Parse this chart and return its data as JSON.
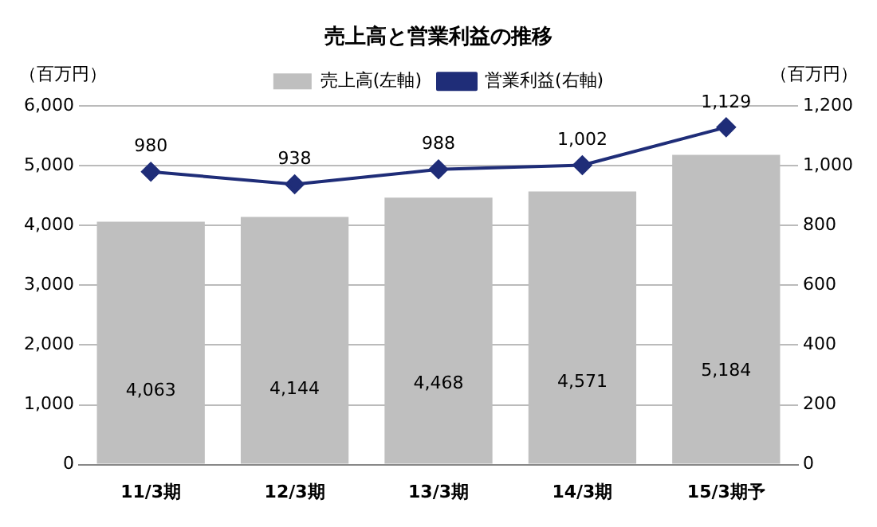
{
  "chart_data": {
    "type": "bar",
    "title": "売上高と営業利益の推移",
    "ylabel": "（百万円）",
    "y2label": "（百万円）",
    "categories": [
      "11/3期",
      "12/3期",
      "13/3期",
      "14/3期",
      "15/3期予"
    ],
    "series": [
      {
        "name": "売上高(左軸)",
        "color": "#bfbfbf",
        "values": [
          4063,
          4144,
          4468,
          4571,
          5184
        ],
        "value_labels": [
          "4,063",
          "4,144",
          "4,468",
          "4,571",
          "5,184"
        ]
      },
      {
        "name": "営業利益(右軸)",
        "type": "line",
        "axis": "y2",
        "color": "#1f2d78",
        "marker": "diamond",
        "values": [
          980,
          938,
          988,
          1002,
          1129
        ],
        "value_labels": [
          "980",
          "938",
          "988",
          "1,002",
          "1,129"
        ]
      }
    ],
    "ylim": [
      0,
      6000
    ],
    "yticks": [
      {
        "value": 0,
        "label": "0"
      },
      {
        "value": 1000,
        "label": "1,000"
      },
      {
        "value": 2000,
        "label": "2,000"
      },
      {
        "value": 3000,
        "label": "3,000"
      },
      {
        "value": 4000,
        "label": "4,000"
      },
      {
        "value": 5000,
        "label": "5,000"
      },
      {
        "value": 6000,
        "label": "6,000"
      }
    ],
    "y2lim": [
      0,
      1200
    ],
    "y2ticks": [
      {
        "value": 0,
        "label": "0"
      },
      {
        "value": 200,
        "label": "200"
      },
      {
        "value": 400,
        "label": "400"
      },
      {
        "value": 600,
        "label": "600"
      },
      {
        "value": 800,
        "label": "800"
      },
      {
        "value": 1000,
        "label": "1,000"
      },
      {
        "value": 1200,
        "label": "1,200"
      }
    ],
    "grid": "y",
    "legend": "top"
  }
}
